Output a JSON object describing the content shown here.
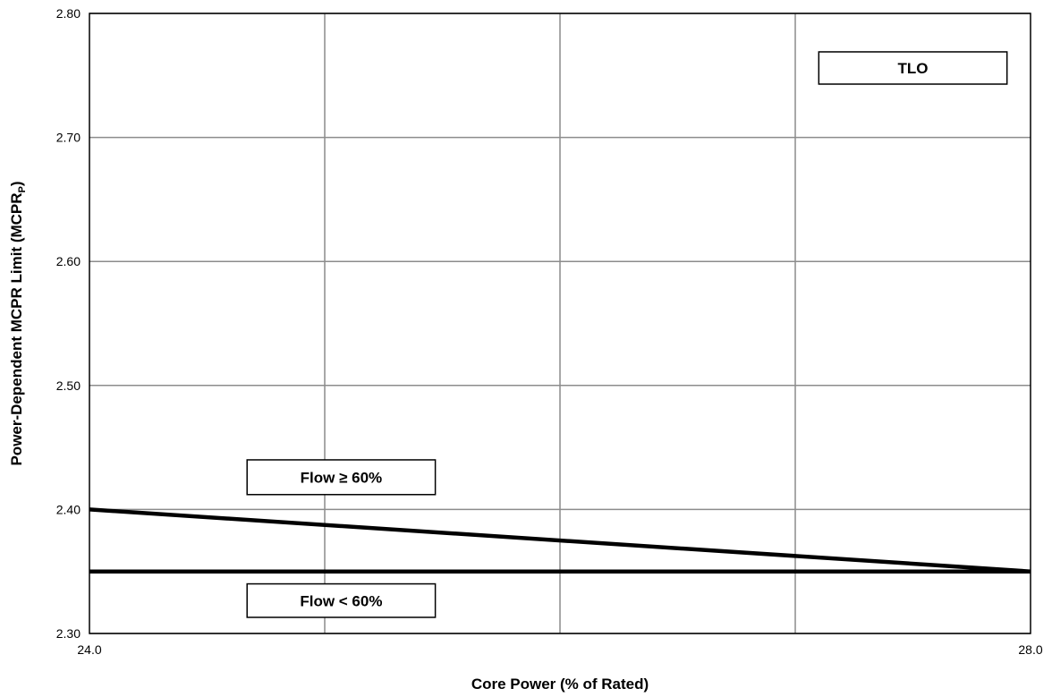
{
  "chart_data": {
    "type": "line",
    "title": "",
    "xlabel": "Core Power (% of Rated)",
    "ylabel": "Power-Dependent MCPR Limit (MCPR",
    "ylabel_subscript": "P",
    "ylabel_suffix": ")",
    "xlim": [
      24.0,
      28.0
    ],
    "ylim": [
      2.3,
      2.8
    ],
    "x_ticks": [
      24.0,
      28.0
    ],
    "x_tick_labels": [
      "24.0",
      "28.0"
    ],
    "x_gridlines": [
      25.0,
      26.0,
      27.0
    ],
    "y_ticks": [
      2.3,
      2.4,
      2.5,
      2.6,
      2.7,
      2.8
    ],
    "y_tick_labels": [
      "2.30",
      "2.40",
      "2.50",
      "2.60",
      "2.70",
      "2.80"
    ],
    "grid": true,
    "series": [
      {
        "x": [
          24.0,
          28.0
        ],
        "y": [
          2.4,
          2.35
        ]
      },
      {
        "x": [
          24.0,
          28.0
        ],
        "y": [
          2.35,
          2.35
        ]
      }
    ],
    "annotations": [
      {
        "text": "TLO",
        "x_range": [
          27.1,
          27.9
        ],
        "y_range": [
          2.743,
          2.769
        ]
      },
      {
        "text": "Flow ≥ 60%",
        "x_range": [
          24.67,
          25.47
        ],
        "y_range": [
          2.412,
          2.44
        ]
      },
      {
        "text": "Flow < 60%",
        "x_range": [
          24.67,
          25.47
        ],
        "y_range": [
          2.313,
          2.34
        ]
      }
    ]
  }
}
